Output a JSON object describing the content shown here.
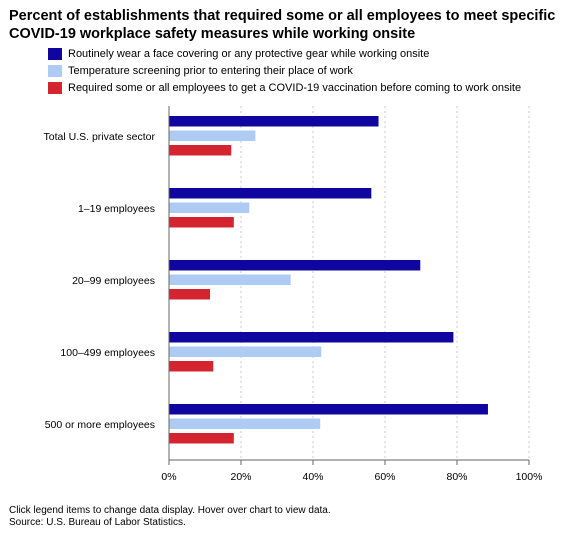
{
  "title": "Percent of establishments that required some or all employees to meet specific COVID-19 workplace safety measures while working onsite",
  "colors": {
    "mask": "#10069f",
    "temp": "#aecbf4",
    "vax": "#d3242f",
    "grid": "#cccccc",
    "axis": "#666666"
  },
  "chart_data": {
    "type": "bar",
    "orientation": "horizontal",
    "categories": [
      "Total U.S. private sector",
      "1–19 employees",
      "20–99 employees",
      "100–499 employees",
      "500 or more employees"
    ],
    "series": [
      {
        "name": "Routinely wear a face covering or any protective gear while working onsite",
        "color": "#10069f",
        "values": [
          58.2,
          56.2,
          69.8,
          79.0,
          88.6
        ]
      },
      {
        "name": "Temperature screening prior to entering their place of work",
        "color": "#aecbf4",
        "values": [
          24.0,
          22.3,
          33.8,
          42.3,
          42.0
        ]
      },
      {
        "name": "Required some or all employees to get a COVID-19 vaccination before coming to work onsite",
        "color": "#d3242f",
        "values": [
          17.3,
          18.0,
          11.4,
          12.3,
          18.0
        ]
      }
    ],
    "xlim": [
      0,
      100
    ],
    "xticks": [
      0,
      20,
      40,
      60,
      80,
      100
    ],
    "xtick_labels": [
      "0%",
      "20%",
      "40%",
      "60%",
      "80%",
      "100%"
    ],
    "grid": true,
    "legend_position": "top"
  },
  "footnote": {
    "line1": "Click legend items to change data display. Hover over chart to view data.",
    "line2": "Source: U.S. Bureau of Labor Statistics."
  }
}
